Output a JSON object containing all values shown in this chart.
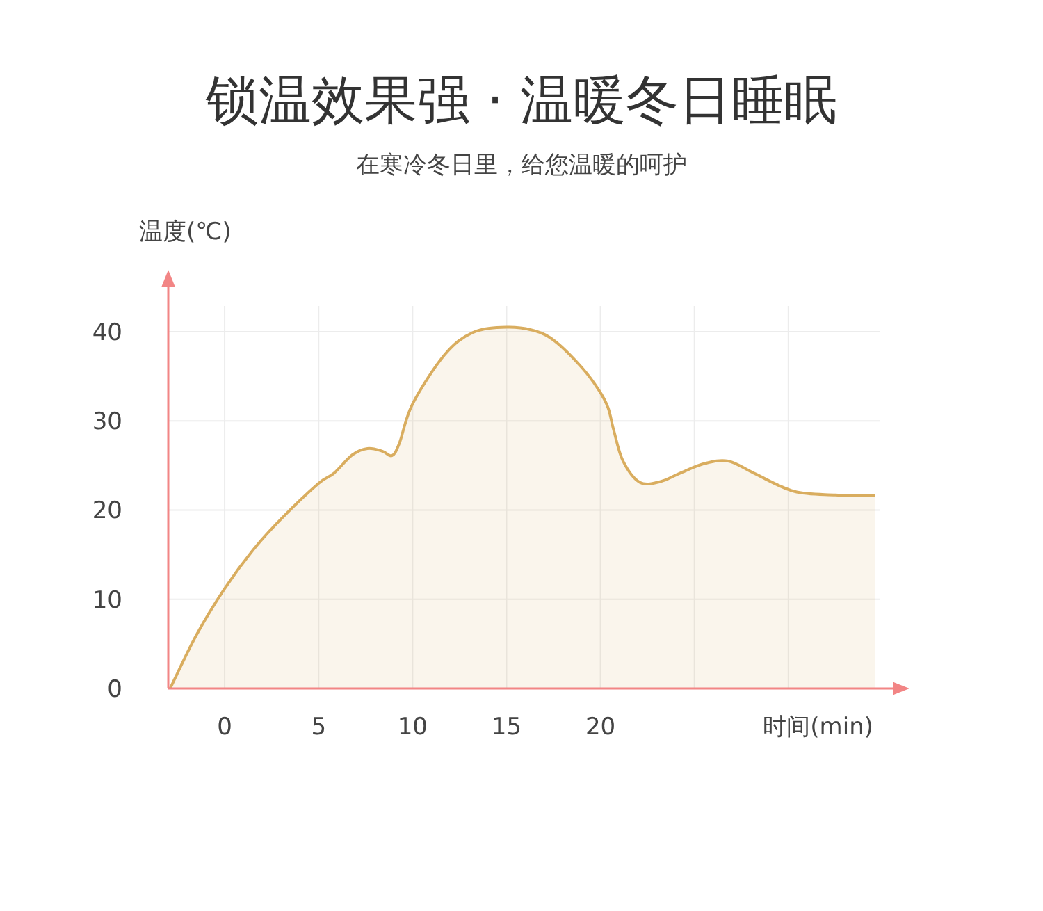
{
  "chart_data": {
    "type": "area",
    "title": "锁温效果强 · 温暖冬日睡眠",
    "subtitle": "在寒冷冬日里，给您温暖的呵护",
    "xlabel": "时间(min)",
    "ylabel": "温度(℃)",
    "xlim": [
      -3,
      36
    ],
    "ylim": [
      0,
      46
    ],
    "xticks": [
      0,
      5,
      10,
      15,
      20,
      {
        "value": 25,
        "label": null
      },
      {
        "value": 30,
        "label": null
      }
    ],
    "yticks": [
      0,
      10,
      20,
      30,
      40
    ],
    "grid": true,
    "marker": "none",
    "line_style": "solid",
    "series": [
      {
        "color": "#d9ad5f",
        "x": [
          -2.9,
          -1.5,
          0,
          1.5,
          3,
          5,
          5.8,
          6.8,
          7.6,
          8.4,
          8.9,
          9.3,
          10,
          11.7,
          13.2,
          15,
          16.5,
          17.6,
          19,
          19.9,
          20.4,
          20.7,
          21.2,
          22.1,
          23.2,
          24.2,
          25.5,
          26.8,
          28.2,
          30.3,
          32.5,
          34.6
        ],
        "values": [
          0,
          6,
          11.2,
          15.5,
          19,
          23,
          24.1,
          26.2,
          26.9,
          26.6,
          26.1,
          27.5,
          31.9,
          37.4,
          39.9,
          40.5,
          40.1,
          38.9,
          36,
          33.5,
          31.5,
          29,
          25.5,
          23.1,
          23.2,
          24.1,
          25.2,
          25.5,
          24.1,
          22.1,
          21.7,
          21.6
        ]
      }
    ]
  }
}
